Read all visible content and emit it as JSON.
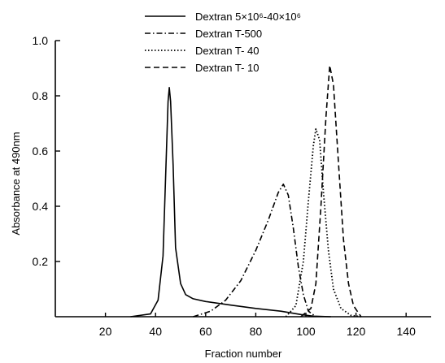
{
  "chart_data": {
    "type": "line",
    "title": "",
    "xlabel": "Fraction number",
    "ylabel": "Absorbance at 490nm",
    "xlim": [
      0,
      150
    ],
    "ylim": [
      0,
      1.0
    ],
    "x_ticks": [
      20,
      40,
      60,
      80,
      100,
      120,
      140
    ],
    "y_ticks": [
      0.2,
      0.4,
      0.6,
      0.8,
      1.0
    ],
    "y_tick_labels": [
      "0.2",
      "0.4",
      "0.6",
      "0.8",
      "1.0"
    ],
    "legend_position": "top-center",
    "series": [
      {
        "name": "Dextran 5×10⁶-40×10⁶",
        "style": "solid",
        "points": [
          [
            30,
            0
          ],
          [
            38,
            0.01
          ],
          [
            41,
            0.06
          ],
          [
            43,
            0.22
          ],
          [
            44,
            0.5
          ],
          [
            45,
            0.78
          ],
          [
            45.5,
            0.83
          ],
          [
            46,
            0.78
          ],
          [
            47,
            0.55
          ],
          [
            48,
            0.25
          ],
          [
            50,
            0.12
          ],
          [
            52,
            0.08
          ],
          [
            55,
            0.065
          ],
          [
            60,
            0.055
          ],
          [
            70,
            0.042
          ],
          [
            80,
            0.03
          ],
          [
            90,
            0.02
          ],
          [
            98,
            0.008
          ],
          [
            103,
            0.002
          ],
          [
            110,
            0
          ]
        ]
      },
      {
        "name": "Dextran T-500",
        "style": "dash-dot",
        "points": [
          [
            55,
            0
          ],
          [
            62,
            0.02
          ],
          [
            68,
            0.06
          ],
          [
            74,
            0.13
          ],
          [
            80,
            0.24
          ],
          [
            85,
            0.35
          ],
          [
            89,
            0.45
          ],
          [
            91,
            0.48
          ],
          [
            93,
            0.44
          ],
          [
            95,
            0.32
          ],
          [
            97,
            0.18
          ],
          [
            99,
            0.08
          ],
          [
            101,
            0.02
          ],
          [
            104,
            0
          ]
        ]
      },
      {
        "name": "Dextran T- 40",
        "style": "dotted",
        "points": [
          [
            92,
            0
          ],
          [
            96,
            0.04
          ],
          [
            99,
            0.2
          ],
          [
            101,
            0.42
          ],
          [
            103,
            0.62
          ],
          [
            104,
            0.68
          ],
          [
            105.5,
            0.64
          ],
          [
            107,
            0.45
          ],
          [
            109,
            0.24
          ],
          [
            111,
            0.1
          ],
          [
            114,
            0.03
          ],
          [
            118,
            0.005
          ],
          [
            122,
            0
          ]
        ]
      },
      {
        "name": "Dextran T- 10",
        "style": "dashed",
        "points": [
          [
            98,
            0
          ],
          [
            102,
            0.03
          ],
          [
            104,
            0.12
          ],
          [
            106,
            0.4
          ],
          [
            108,
            0.72
          ],
          [
            109.5,
            0.91
          ],
          [
            111,
            0.84
          ],
          [
            113,
            0.56
          ],
          [
            115,
            0.28
          ],
          [
            117,
            0.12
          ],
          [
            119,
            0.04
          ],
          [
            122,
            0
          ]
        ]
      }
    ]
  }
}
